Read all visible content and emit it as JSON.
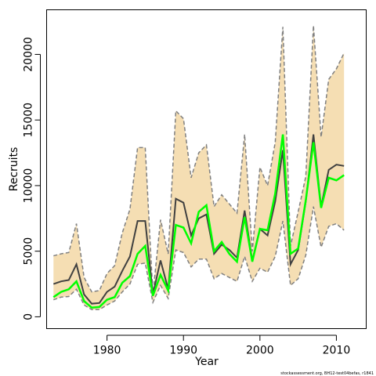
{
  "chart_data": {
    "type": "line",
    "xlabel": "Year",
    "ylabel": "Recruits",
    "footnote": "stockassessment.org, BH12-test04befas, r1841",
    "xlim": [
      1972.1,
      2013.9
    ],
    "ylim": [
      -900,
      23400
    ],
    "x_ticks": [
      1980,
      1990,
      2000,
      2010
    ],
    "y_ticks": [
      0,
      5000,
      10000,
      15000,
      20000
    ],
    "grid": false,
    "legend": "none",
    "x": [
      1973,
      1974,
      1975,
      1976,
      1977,
      1978,
      1979,
      1980,
      1981,
      1982,
      1983,
      1984,
      1985,
      1986,
      1987,
      1988,
      1989,
      1990,
      1991,
      1992,
      1993,
      1994,
      1995,
      1996,
      1997,
      1998,
      1999,
      2000,
      2001,
      2002,
      2003,
      2004,
      2005,
      2006,
      2007,
      2008,
      2009,
      2010,
      2011
    ],
    "colors": {
      "band": "#f5deb3",
      "bounds": "#808080",
      "estimate": "#404040",
      "highlight": "#00ff00"
    },
    "series": [
      {
        "role": "upper",
        "values": [
          4650,
          4800,
          4900,
          7100,
          3000,
          1900,
          2000,
          3300,
          3900,
          6400,
          8200,
          12900,
          12900,
          1700,
          7400,
          4800,
          15700,
          15100,
          10600,
          12500,
          13100,
          8400,
          9300,
          8600,
          7900,
          13900,
          5000,
          11400,
          10000,
          13300,
          22100,
          5400,
          8000,
          10700,
          22200,
          13700,
          18100,
          18900,
          20100
        ]
      },
      {
        "role": "estimate",
        "values": [
          2500,
          2700,
          2800,
          4000,
          1700,
          1000,
          1050,
          1900,
          2300,
          3500,
          4600,
          7300,
          7300,
          1700,
          4300,
          2100,
          9000,
          8700,
          6200,
          7500,
          7800,
          4800,
          5500,
          5100,
          4500,
          8100,
          4300,
          6700,
          6200,
          8800,
          12700,
          4000,
          5100,
          8800,
          13900,
          8400,
          11200,
          11600,
          11500
        ]
      },
      {
        "role": "highlight",
        "values": [
          1500,
          1900,
          2100,
          2700,
          1200,
          700,
          750,
          1300,
          1500,
          2600,
          3100,
          4800,
          5400,
          1600,
          3200,
          2000,
          7000,
          6800,
          5600,
          8000,
          8500,
          5000,
          5700,
          4800,
          4200,
          7600,
          4200,
          6700,
          6600,
          9400,
          13900,
          4800,
          5200,
          8900,
          13300,
          8300,
          10600,
          10400,
          10800
        ]
      },
      {
        "role": "lower",
        "values": [
          1300,
          1500,
          1550,
          2100,
          900,
          550,
          550,
          900,
          1200,
          1900,
          2500,
          4000,
          4100,
          1100,
          2400,
          1400,
          5100,
          4900,
          3800,
          4400,
          4400,
          2900,
          3300,
          3000,
          2700,
          4600,
          2700,
          3700,
          3400,
          4600,
          7300,
          2400,
          2900,
          4700,
          8400,
          5300,
          6900,
          7100,
          6600
        ]
      }
    ]
  }
}
